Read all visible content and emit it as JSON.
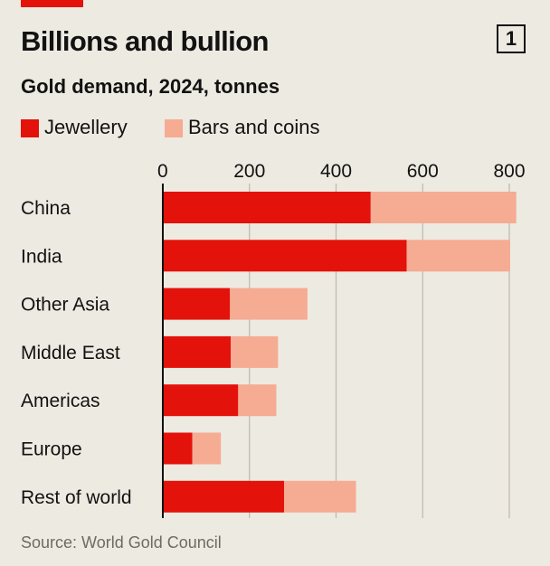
{
  "header": {
    "title": "Billions and bullion",
    "subtitle": "Gold demand, 2024, tonnes",
    "chart_number": "1"
  },
  "footer": {
    "source": "Source: World Gold Council"
  },
  "colors": {
    "background": "#EDEAE1",
    "accent": "#E3120B",
    "jewellery": "#E3120B",
    "bars_and_coins": "#F6AB93",
    "gridline": "#BDB9B1",
    "axis": "#121212"
  },
  "chart_data": {
    "type": "bar",
    "orientation": "horizontal",
    "stacked": true,
    "title": "Billions and bullion",
    "subtitle": "Gold demand, 2024, tonnes",
    "categories": [
      "China",
      "India",
      "Other Asia",
      "Middle East",
      "Americas",
      "Europe",
      "Rest of world"
    ],
    "series": [
      {
        "name": "Jewellery",
        "values": [
          480,
          563,
          155,
          157,
          174,
          68,
          280
        ]
      },
      {
        "name": "Bars and coins",
        "values": [
          336,
          239,
          179,
          109,
          88,
          66,
          166
        ]
      }
    ],
    "xlim": [
      0,
      800
    ],
    "x_ticks": [
      "0",
      "200",
      "400",
      "600",
      "800"
    ],
    "x_tick_values": [
      0,
      200,
      400,
      600,
      800
    ],
    "grid": true,
    "legend_position": "top-left",
    "xlabel": "",
    "ylabel": ""
  }
}
